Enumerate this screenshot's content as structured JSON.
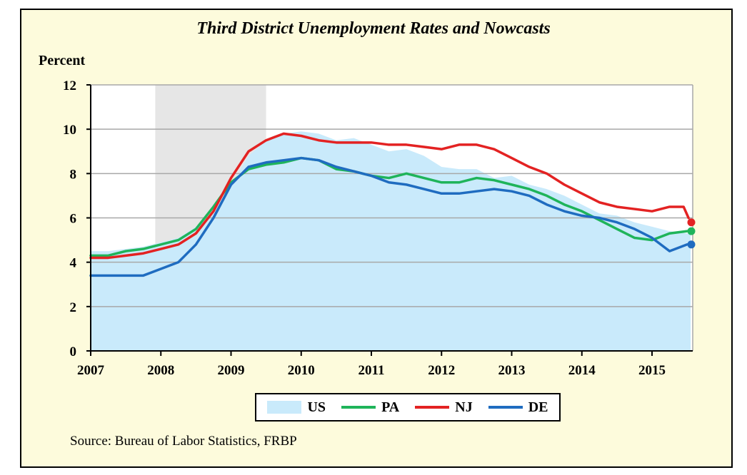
{
  "chart_data": {
    "type": "line",
    "title": "Third District Unemployment Rates and Nowcasts",
    "ylabel": "Percent",
    "xlabel": "",
    "source": "Source: Bureau of Labor Statistics, FRBP",
    "xlim": [
      2007.0,
      2015.58
    ],
    "ylim": [
      0,
      12
    ],
    "yticks": [
      0,
      2,
      4,
      6,
      8,
      10,
      12
    ],
    "xticks": [
      "2007",
      "2008",
      "2009",
      "2010",
      "2011",
      "2012",
      "2013",
      "2014",
      "2015"
    ],
    "grid": true,
    "legend_position": "bottom-center",
    "recession_band": [
      2007.92,
      2009.5
    ],
    "colors": {
      "US": "#c9eafb",
      "PA": "#1fb45a",
      "NJ": "#e32222",
      "DE": "#1f6cc0",
      "recession": "#e6e6e6",
      "plot_bg": "#ffffff",
      "panel_bg": "#fdfbdc",
      "grid": "#a8a8a8"
    },
    "series": [
      {
        "name": "US",
        "style": "area",
        "x": [
          2007.0,
          2007.25,
          2007.5,
          2007.75,
          2008.0,
          2008.25,
          2008.5,
          2008.75,
          2009.0,
          2009.25,
          2009.5,
          2009.75,
          2010.0,
          2010.25,
          2010.5,
          2010.75,
          2011.0,
          2011.25,
          2011.5,
          2011.75,
          2012.0,
          2012.25,
          2012.5,
          2012.75,
          2013.0,
          2013.25,
          2013.5,
          2013.75,
          2014.0,
          2014.25,
          2014.5,
          2014.75,
          2015.0,
          2015.25,
          2015.5,
          2015.55
        ],
        "y": [
          4.5,
          4.5,
          4.6,
          4.7,
          4.9,
          5.1,
          5.6,
          6.2,
          7.5,
          8.8,
          9.5,
          9.8,
          9.9,
          9.8,
          9.5,
          9.6,
          9.3,
          9.0,
          9.1,
          8.8,
          8.3,
          8.2,
          8.2,
          7.8,
          7.9,
          7.5,
          7.3,
          7.0,
          6.6,
          6.2,
          6.1,
          5.8,
          5.6,
          5.4,
          5.3,
          5.3
        ]
      },
      {
        "name": "PA",
        "style": "line",
        "x": [
          2007.0,
          2007.25,
          2007.5,
          2007.75,
          2008.0,
          2008.25,
          2008.5,
          2008.75,
          2009.0,
          2009.25,
          2009.5,
          2009.75,
          2010.0,
          2010.25,
          2010.5,
          2010.75,
          2011.0,
          2011.25,
          2011.5,
          2011.75,
          2012.0,
          2012.25,
          2012.5,
          2012.75,
          2013.0,
          2013.25,
          2013.5,
          2013.75,
          2014.0,
          2014.25,
          2014.5,
          2014.75,
          2015.0,
          2015.25,
          2015.5
        ],
        "y": [
          4.3,
          4.3,
          4.5,
          4.6,
          4.8,
          5.0,
          5.5,
          6.5,
          7.6,
          8.2,
          8.4,
          8.5,
          8.7,
          8.6,
          8.2,
          8.1,
          7.9,
          7.8,
          8.0,
          7.8,
          7.6,
          7.6,
          7.8,
          7.7,
          7.5,
          7.3,
          7.0,
          6.6,
          6.3,
          5.9,
          5.5,
          5.1,
          5.0,
          5.3,
          5.4
        ]
      },
      {
        "name": "NJ",
        "style": "line",
        "x": [
          2007.0,
          2007.25,
          2007.5,
          2007.75,
          2008.0,
          2008.25,
          2008.5,
          2008.75,
          2009.0,
          2009.25,
          2009.5,
          2009.75,
          2010.0,
          2010.25,
          2010.5,
          2010.75,
          2011.0,
          2011.25,
          2011.5,
          2011.75,
          2012.0,
          2012.25,
          2012.5,
          2012.75,
          2013.0,
          2013.25,
          2013.5,
          2013.75,
          2014.0,
          2014.25,
          2014.5,
          2014.75,
          2015.0,
          2015.25,
          2015.45,
          2015.52
        ],
        "y": [
          4.2,
          4.2,
          4.3,
          4.4,
          4.6,
          4.8,
          5.3,
          6.3,
          7.8,
          9.0,
          9.5,
          9.8,
          9.7,
          9.5,
          9.4,
          9.4,
          9.4,
          9.3,
          9.3,
          9.2,
          9.1,
          9.3,
          9.3,
          9.1,
          8.7,
          8.3,
          8.0,
          7.5,
          7.1,
          6.7,
          6.5,
          6.4,
          6.3,
          6.5,
          6.5,
          6.0
        ]
      },
      {
        "name": "DE",
        "style": "line",
        "x": [
          2007.0,
          2007.25,
          2007.5,
          2007.75,
          2008.0,
          2008.25,
          2008.5,
          2008.75,
          2009.0,
          2009.25,
          2009.5,
          2009.75,
          2010.0,
          2010.25,
          2010.5,
          2010.75,
          2011.0,
          2011.25,
          2011.5,
          2011.75,
          2012.0,
          2012.25,
          2012.5,
          2012.75,
          2013.0,
          2013.25,
          2013.5,
          2013.75,
          2014.0,
          2014.25,
          2014.5,
          2014.75,
          2015.0,
          2015.25,
          2015.5
        ],
        "y": [
          3.4,
          3.4,
          3.4,
          3.4,
          3.7,
          4.0,
          4.8,
          6.0,
          7.5,
          8.3,
          8.5,
          8.6,
          8.7,
          8.6,
          8.3,
          8.1,
          7.9,
          7.6,
          7.5,
          7.3,
          7.1,
          7.1,
          7.2,
          7.3,
          7.2,
          7.0,
          6.6,
          6.3,
          6.1,
          6.0,
          5.8,
          5.5,
          5.1,
          4.5,
          4.8
        ]
      }
    ],
    "nowcasts": [
      {
        "name": "NJ",
        "x": 2015.58,
        "y": 5.8
      },
      {
        "name": "PA",
        "x": 2015.58,
        "y": 5.4
      },
      {
        "name": "DE",
        "x": 2015.58,
        "y": 4.8
      }
    ]
  }
}
